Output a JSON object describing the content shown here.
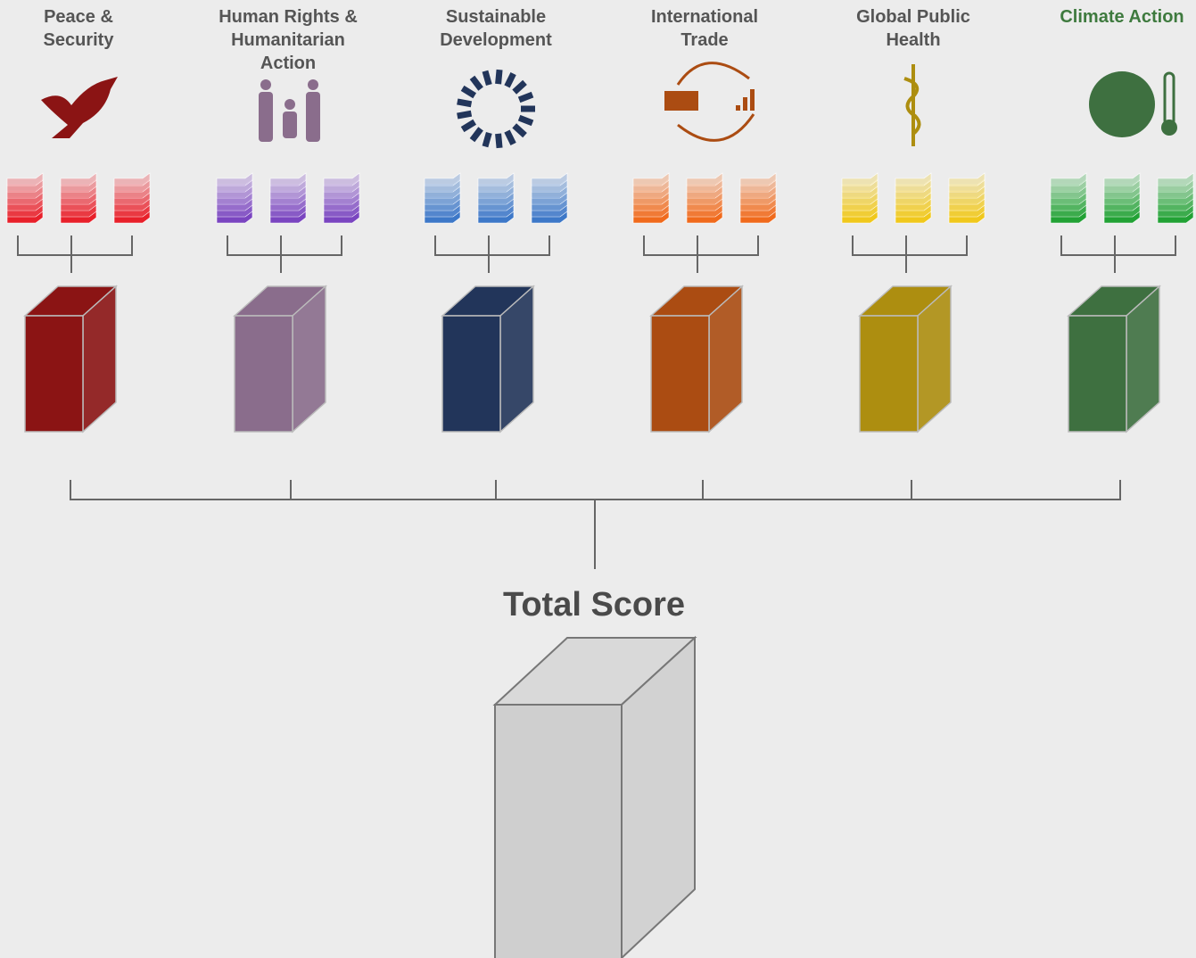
{
  "nodes": [
    {
      "label_lines": [
        "Peace &",
        "Security"
      ],
      "color": "#8b1414",
      "light": "#e8202a",
      "title_color": "#555555"
    },
    {
      "label_lines": [
        "Human Rights &",
        "Humanitarian",
        "Action"
      ],
      "color": "#8a6d8c",
      "light": "#7a45c0",
      "title_color": "#555555"
    },
    {
      "label_lines": [
        "Sustainable",
        "Development"
      ],
      "color": "#22355a",
      "light": "#3d78c8",
      "title_color": "#555555"
    },
    {
      "label_lines": [
        "International",
        "Trade"
      ],
      "color": "#ab4c12",
      "light": "#f06a1c",
      "title_color": "#555555"
    },
    {
      "label_lines": [
        "Global Public",
        "Health"
      ],
      "color": "#ad8e10",
      "light": "#f0c81c",
      "title_color": "#555555"
    },
    {
      "label_lines": [
        "Climate Action"
      ],
      "color": "#3e7040",
      "light": "#22a235",
      "title_color": "#3e7a3e"
    }
  ],
  "total": {
    "label": "Total Score"
  }
}
